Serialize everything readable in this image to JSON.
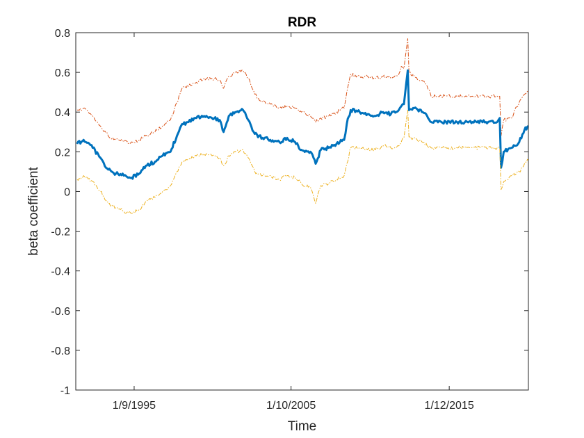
{
  "chart_data": {
    "type": "line",
    "title": "RDR",
    "xlabel": "Time",
    "ylabel": "beta coefficient",
    "ylim": [
      -1,
      0.8
    ],
    "xlim": [
      "1991-12-01",
      "2021-01-01"
    ],
    "y_ticks": [
      -1,
      -0.8,
      -0.6,
      -0.4,
      -0.2,
      0,
      0.2,
      0.4,
      0.6,
      0.8
    ],
    "y_tick_labels": [
      "-1",
      "-0.8",
      "-0.6",
      "-0.4",
      "-0.2",
      "0",
      "0.2",
      "0.4",
      "0.6",
      "0.8"
    ],
    "x_ticks": [
      "1995-09-01",
      "2005-10-01",
      "2015-12-01"
    ],
    "x_tick_labels": [
      "1/9/1995",
      "1/10/2005",
      "1/12/2015"
    ],
    "grid": false,
    "box": true,
    "series": [
      {
        "color": "#D95319",
        "style": "dash-dot",
        "width": 1,
        "points": [
          [
            "1992-01-01",
            0.41
          ],
          [
            "1992-06-01",
            0.42
          ],
          [
            "1993-01-01",
            0.38
          ],
          [
            "1993-07-01",
            0.33
          ],
          [
            "1994-01-01",
            0.28
          ],
          [
            "1994-07-01",
            0.26
          ],
          [
            "1995-01-01",
            0.25
          ],
          [
            "1995-07-01",
            0.25
          ],
          [
            "1996-01-01",
            0.26
          ],
          [
            "1996-06-01",
            0.28
          ],
          [
            "1997-01-01",
            0.3
          ],
          [
            "1997-07-01",
            0.33
          ],
          [
            "1998-01-01",
            0.36
          ],
          [
            "1998-06-01",
            0.45
          ],
          [
            "1998-10-01",
            0.52
          ],
          [
            "1999-03-01",
            0.53
          ],
          [
            "1999-09-01",
            0.55
          ],
          [
            "2000-03-01",
            0.57
          ],
          [
            "2000-09-01",
            0.57
          ],
          [
            "2001-03-01",
            0.56
          ],
          [
            "2001-06-01",
            0.52
          ],
          [
            "2001-10-01",
            0.58
          ],
          [
            "2002-03-01",
            0.6
          ],
          [
            "2002-09-01",
            0.61
          ],
          [
            "2003-01-01",
            0.57
          ],
          [
            "2003-06-01",
            0.49
          ],
          [
            "2003-12-01",
            0.45
          ],
          [
            "2004-06-01",
            0.44
          ],
          [
            "2005-01-01",
            0.42
          ],
          [
            "2005-07-01",
            0.43
          ],
          [
            "2006-01-01",
            0.42
          ],
          [
            "2006-06-01",
            0.4
          ],
          [
            "2007-01-01",
            0.38
          ],
          [
            "2007-05-01",
            0.35
          ],
          [
            "2007-09-01",
            0.37
          ],
          [
            "2008-03-01",
            0.38
          ],
          [
            "2008-09-01",
            0.4
          ],
          [
            "2009-03-01",
            0.42
          ],
          [
            "2009-05-01",
            0.5
          ],
          [
            "2009-08-01",
            0.59
          ],
          [
            "2010-03-01",
            0.58
          ],
          [
            "2010-09-01",
            0.58
          ],
          [
            "2011-03-01",
            0.57
          ],
          [
            "2011-09-01",
            0.58
          ],
          [
            "2012-03-01",
            0.57
          ],
          [
            "2012-09-01",
            0.59
          ],
          [
            "2012-11-01",
            0.63
          ],
          [
            "2013-01-01",
            0.62
          ],
          [
            "2013-04-01",
            0.77
          ],
          [
            "2013-05-01",
            0.6
          ],
          [
            "2013-09-01",
            0.58
          ],
          [
            "2014-03-01",
            0.56
          ],
          [
            "2014-07-01",
            0.53
          ],
          [
            "2014-10-01",
            0.48
          ],
          [
            "2015-06-01",
            0.48
          ],
          [
            "2016-06-01",
            0.48
          ],
          [
            "2017-06-01",
            0.48
          ],
          [
            "2018-06-01",
            0.48
          ],
          [
            "2019-01-01",
            0.48
          ],
          [
            "2019-03-01",
            0.48
          ],
          [
            "2019-04-01",
            0.28
          ],
          [
            "2019-06-01",
            0.36
          ],
          [
            "2019-12-01",
            0.37
          ],
          [
            "2020-06-01",
            0.45
          ],
          [
            "2020-10-01",
            0.49
          ],
          [
            "2021-01-01",
            0.5
          ]
        ]
      },
      {
        "color": "#0072BD",
        "style": "solid",
        "width": 3,
        "points": [
          [
            "1992-01-01",
            0.24
          ],
          [
            "1992-06-01",
            0.26
          ],
          [
            "1993-01-01",
            0.22
          ],
          [
            "1993-07-01",
            0.17
          ],
          [
            "1994-01-01",
            0.11
          ],
          [
            "1994-07-01",
            0.09
          ],
          [
            "1995-01-01",
            0.08
          ],
          [
            "1995-07-01",
            0.07
          ],
          [
            "1996-01-01",
            0.09
          ],
          [
            "1996-06-01",
            0.13
          ],
          [
            "1997-01-01",
            0.15
          ],
          [
            "1997-07-01",
            0.18
          ],
          [
            "1998-01-01",
            0.2
          ],
          [
            "1998-06-01",
            0.28
          ],
          [
            "1998-10-01",
            0.34
          ],
          [
            "1999-03-01",
            0.35
          ],
          [
            "1999-09-01",
            0.37
          ],
          [
            "2000-03-01",
            0.38
          ],
          [
            "2000-09-01",
            0.37
          ],
          [
            "2001-03-01",
            0.36
          ],
          [
            "2001-06-01",
            0.3
          ],
          [
            "2001-10-01",
            0.38
          ],
          [
            "2002-03-01",
            0.4
          ],
          [
            "2002-09-01",
            0.41
          ],
          [
            "2003-01-01",
            0.36
          ],
          [
            "2003-06-01",
            0.29
          ],
          [
            "2003-12-01",
            0.27
          ],
          [
            "2004-06-01",
            0.26
          ],
          [
            "2005-01-01",
            0.25
          ],
          [
            "2005-07-01",
            0.27
          ],
          [
            "2006-01-01",
            0.25
          ],
          [
            "2006-06-01",
            0.21
          ],
          [
            "2007-01-01",
            0.2
          ],
          [
            "2007-05-01",
            0.14
          ],
          [
            "2007-09-01",
            0.21
          ],
          [
            "2008-03-01",
            0.22
          ],
          [
            "2008-09-01",
            0.24
          ],
          [
            "2009-03-01",
            0.26
          ],
          [
            "2009-05-01",
            0.34
          ],
          [
            "2009-08-01",
            0.41
          ],
          [
            "2010-03-01",
            0.4
          ],
          [
            "2010-09-01",
            0.39
          ],
          [
            "2011-03-01",
            0.38
          ],
          [
            "2011-09-01",
            0.4
          ],
          [
            "2012-03-01",
            0.39
          ],
          [
            "2012-09-01",
            0.41
          ],
          [
            "2012-11-01",
            0.43
          ],
          [
            "2013-01-01",
            0.44
          ],
          [
            "2013-04-01",
            0.61
          ],
          [
            "2013-05-01",
            0.41
          ],
          [
            "2013-09-01",
            0.42
          ],
          [
            "2014-03-01",
            0.4
          ],
          [
            "2014-07-01",
            0.38
          ],
          [
            "2014-10-01",
            0.35
          ],
          [
            "2015-06-01",
            0.35
          ],
          [
            "2016-06-01",
            0.35
          ],
          [
            "2017-06-01",
            0.35
          ],
          [
            "2018-06-01",
            0.35
          ],
          [
            "2019-01-01",
            0.35
          ],
          [
            "2019-03-01",
            0.37
          ],
          [
            "2019-04-01",
            0.12
          ],
          [
            "2019-06-01",
            0.2
          ],
          [
            "2019-12-01",
            0.22
          ],
          [
            "2020-06-01",
            0.25
          ],
          [
            "2020-10-01",
            0.31
          ],
          [
            "2021-01-01",
            0.33
          ]
        ]
      },
      {
        "color": "#EDB120",
        "style": "dash-dot",
        "width": 1,
        "points": [
          [
            "1992-01-01",
            0.06
          ],
          [
            "1992-06-01",
            0.08
          ],
          [
            "1993-01-01",
            0.05
          ],
          [
            "1993-07-01",
            0.0
          ],
          [
            "1994-01-01",
            -0.06
          ],
          [
            "1994-07-01",
            -0.08
          ],
          [
            "1995-01-01",
            -0.1
          ],
          [
            "1995-07-01",
            -0.11
          ],
          [
            "1996-01-01",
            -0.09
          ],
          [
            "1996-06-01",
            -0.05
          ],
          [
            "1997-01-01",
            -0.03
          ],
          [
            "1997-07-01",
            0.0
          ],
          [
            "1998-01-01",
            0.03
          ],
          [
            "1998-06-01",
            0.1
          ],
          [
            "1998-10-01",
            0.15
          ],
          [
            "1999-03-01",
            0.16
          ],
          [
            "1999-09-01",
            0.18
          ],
          [
            "2000-03-01",
            0.19
          ],
          [
            "2000-09-01",
            0.18
          ],
          [
            "2001-03-01",
            0.17
          ],
          [
            "2001-06-01",
            0.13
          ],
          [
            "2001-10-01",
            0.18
          ],
          [
            "2002-03-01",
            0.2
          ],
          [
            "2002-09-01",
            0.21
          ],
          [
            "2003-01-01",
            0.17
          ],
          [
            "2003-06-01",
            0.1
          ],
          [
            "2003-12-01",
            0.08
          ],
          [
            "2004-06-01",
            0.08
          ],
          [
            "2005-01-01",
            0.06
          ],
          [
            "2005-07-01",
            0.08
          ],
          [
            "2006-01-01",
            0.07
          ],
          [
            "2006-06-01",
            0.04
          ],
          [
            "2007-01-01",
            0.02
          ],
          [
            "2007-05-01",
            -0.06
          ],
          [
            "2007-09-01",
            0.03
          ],
          [
            "2008-03-01",
            0.04
          ],
          [
            "2008-09-01",
            0.06
          ],
          [
            "2009-03-01",
            0.08
          ],
          [
            "2009-05-01",
            0.14
          ],
          [
            "2009-08-01",
            0.22
          ],
          [
            "2010-03-01",
            0.22
          ],
          [
            "2010-09-01",
            0.21
          ],
          [
            "2011-03-01",
            0.21
          ],
          [
            "2011-09-01",
            0.23
          ],
          [
            "2012-03-01",
            0.22
          ],
          [
            "2012-09-01",
            0.23
          ],
          [
            "2012-11-01",
            0.25
          ],
          [
            "2013-01-01",
            0.27
          ],
          [
            "2013-04-01",
            0.41
          ],
          [
            "2013-05-01",
            0.27
          ],
          [
            "2013-09-01",
            0.27
          ],
          [
            "2014-03-01",
            0.25
          ],
          [
            "2014-07-01",
            0.23
          ],
          [
            "2014-10-01",
            0.22
          ],
          [
            "2015-06-01",
            0.22
          ],
          [
            "2016-06-01",
            0.22
          ],
          [
            "2017-06-01",
            0.22
          ],
          [
            "2018-06-01",
            0.22
          ],
          [
            "2019-01-01",
            0.22
          ],
          [
            "2019-03-01",
            0.22
          ],
          [
            "2019-04-01",
            0.01
          ],
          [
            "2019-06-01",
            0.05
          ],
          [
            "2019-12-01",
            0.08
          ],
          [
            "2020-06-01",
            0.1
          ],
          [
            "2020-10-01",
            0.14
          ],
          [
            "2021-01-01",
            0.16
          ]
        ]
      }
    ]
  }
}
